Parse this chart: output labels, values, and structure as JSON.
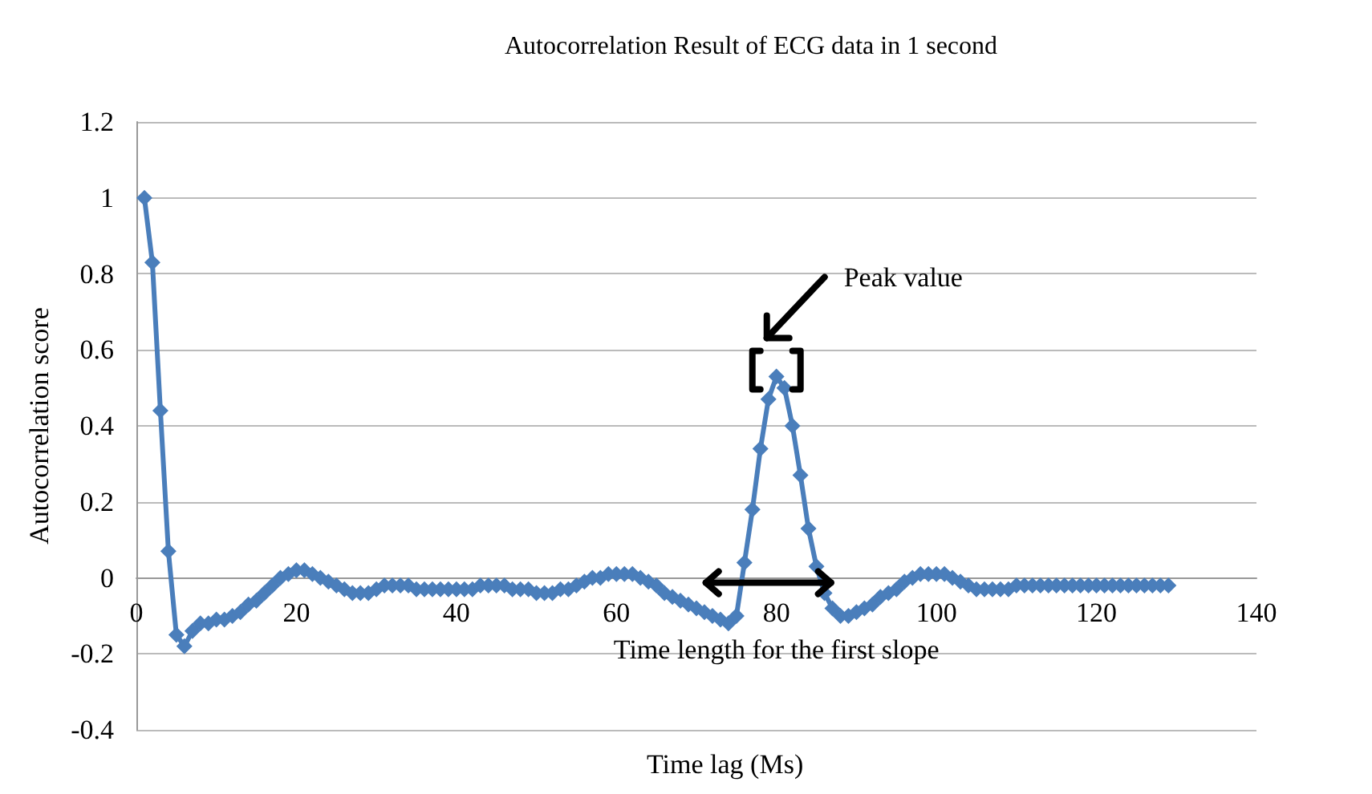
{
  "chart_data": {
    "type": "line",
    "title": "Autocorrelation Result of ECG data in 1 second",
    "xlabel": "Time lag (Ms)",
    "ylabel": "Autocorrelation score",
    "x": [
      1,
      2,
      3,
      4,
      5,
      6,
      7,
      8,
      9,
      10,
      11,
      12,
      13,
      14,
      15,
      16,
      17,
      18,
      19,
      20,
      21,
      22,
      23,
      24,
      25,
      26,
      27,
      28,
      29,
      30,
      31,
      32,
      33,
      34,
      35,
      36,
      37,
      38,
      39,
      40,
      41,
      42,
      43,
      44,
      45,
      46,
      47,
      48,
      49,
      50,
      51,
      52,
      53,
      54,
      55,
      56,
      57,
      58,
      59,
      60,
      61,
      62,
      63,
      64,
      65,
      66,
      67,
      68,
      69,
      70,
      71,
      72,
      73,
      74,
      75,
      76,
      77,
      78,
      79,
      80,
      81,
      82,
      83,
      84,
      85,
      86,
      87,
      88,
      89,
      90,
      91,
      92,
      93,
      94,
      95,
      96,
      97,
      98,
      99,
      100,
      101,
      102,
      103,
      104,
      105,
      106,
      107,
      108,
      109,
      110,
      111,
      112,
      113,
      114,
      115,
      116,
      117,
      118,
      119,
      120,
      121,
      122,
      123,
      124,
      125,
      126,
      127,
      128,
      129
    ],
    "series": [
      {
        "color": "#4a7ebb",
        "values": [
          1.0,
          0.83,
          0.44,
          0.07,
          -0.15,
          -0.18,
          -0.14,
          -0.12,
          -0.12,
          -0.11,
          -0.11,
          -0.1,
          -0.09,
          -0.07,
          -0.06,
          -0.04,
          -0.02,
          0.0,
          0.01,
          0.02,
          0.02,
          0.01,
          0.0,
          -0.01,
          -0.02,
          -0.03,
          -0.04,
          -0.04,
          -0.04,
          -0.03,
          -0.02,
          -0.02,
          -0.02,
          -0.02,
          -0.03,
          -0.03,
          -0.03,
          -0.03,
          -0.03,
          -0.03,
          -0.03,
          -0.03,
          -0.02,
          -0.02,
          -0.02,
          -0.02,
          -0.03,
          -0.03,
          -0.03,
          -0.04,
          -0.04,
          -0.04,
          -0.03,
          -0.03,
          -0.02,
          -0.01,
          0.0,
          0.0,
          0.01,
          0.01,
          0.01,
          0.01,
          0.0,
          -0.01,
          -0.02,
          -0.04,
          -0.05,
          -0.06,
          -0.07,
          -0.08,
          -0.09,
          -0.1,
          -0.11,
          -0.12,
          -0.1,
          0.04,
          0.18,
          0.34,
          0.47,
          0.53,
          0.5,
          0.4,
          0.27,
          0.13,
          0.03,
          -0.04,
          -0.08,
          -0.1,
          -0.1,
          -0.09,
          -0.08,
          -0.07,
          -0.05,
          -0.04,
          -0.03,
          -0.01,
          0.0,
          0.01,
          0.01,
          0.01,
          0.01,
          0.0,
          -0.01,
          -0.02,
          -0.03,
          -0.03,
          -0.03,
          -0.03,
          -0.03,
          -0.02,
          -0.02,
          -0.02,
          -0.02,
          -0.02,
          -0.02,
          -0.02,
          -0.02,
          -0.02,
          -0.02,
          -0.02,
          -0.02,
          -0.02,
          -0.02,
          -0.02,
          -0.02,
          -0.02,
          -0.02,
          -0.02,
          -0.02
        ]
      }
    ],
    "xlim": [
      0,
      140
    ],
    "xticks": [
      0,
      20,
      40,
      60,
      80,
      100,
      120,
      140
    ],
    "ylim": [
      -0.4,
      1.2
    ],
    "yticks": [
      -0.4,
      -0.2,
      0,
      0.2,
      0.4,
      0.6,
      0.8,
      1,
      1.2
    ],
    "grid": "y",
    "marker": "diamond",
    "line_style": "solid",
    "annotations": [
      "Peak value",
      "Time length for the first slope"
    ]
  }
}
